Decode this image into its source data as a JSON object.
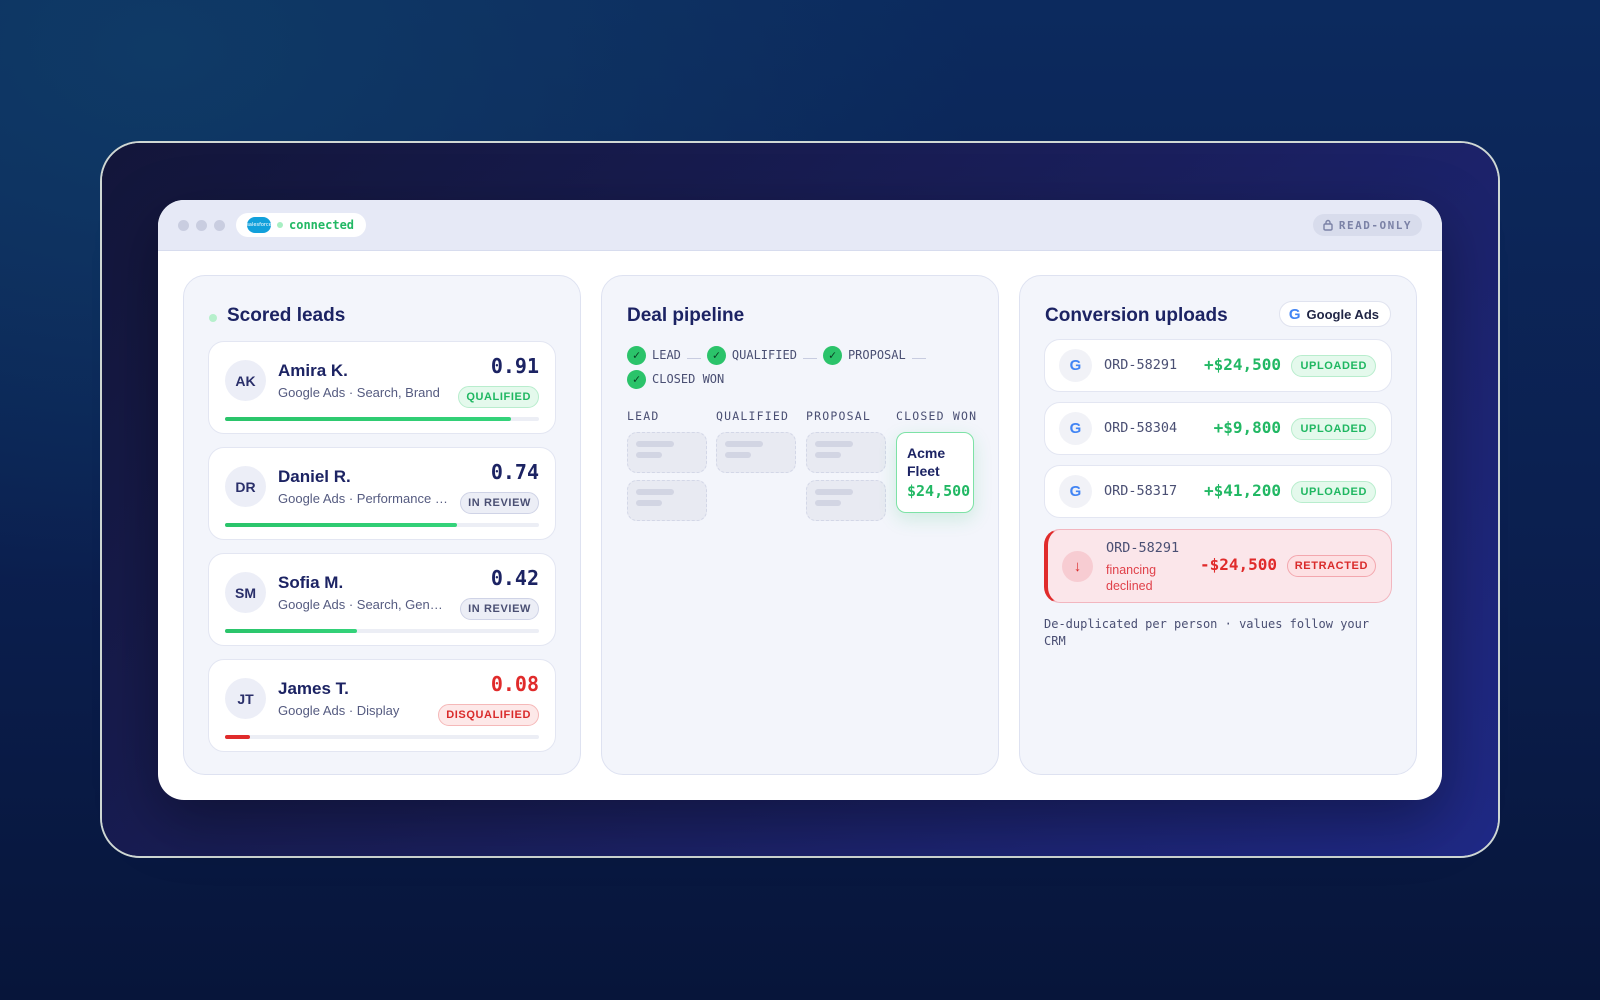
{
  "titlebar": {
    "connection_status": "connected",
    "salesforce_logo_text": "salesforce",
    "mode_label": "READ-ONLY"
  },
  "leads": {
    "title": "Scored leads",
    "items": [
      {
        "initials": "AK",
        "name": "Amira K.",
        "source": "Google Ads · Search, Brand",
        "score": "0.91",
        "status": "QUALIFIED",
        "score_fraction": 0.91
      },
      {
        "initials": "DR",
        "name": "Daniel R.",
        "source": "Google Ads · Performance Max",
        "score": "0.74",
        "status": "IN REVIEW",
        "score_fraction": 0.74
      },
      {
        "initials": "SM",
        "name": "Sofia M.",
        "source": "Google Ads · Search, Generic",
        "score": "0.42",
        "status": "IN REVIEW",
        "score_fraction": 0.42
      },
      {
        "initials": "JT",
        "name": "James T.",
        "source": "Google Ads · Display",
        "score": "0.08",
        "status": "DISQUALIFIED",
        "score_fraction": 0.08
      }
    ]
  },
  "pipeline": {
    "title": "Deal pipeline",
    "stages": [
      "LEAD",
      "QUALIFIED",
      "PROPOSAL",
      "CLOSED WON"
    ],
    "columns": [
      "LEAD",
      "QUALIFIED",
      "PROPOSAL",
      "CLOSED WON"
    ],
    "deal": {
      "name": "Acme Fleet",
      "value": "$24,500"
    }
  },
  "uploads": {
    "title": "Conversion uploads",
    "platform_label": "Google Ads",
    "rows": [
      {
        "order": "ORD-58291",
        "amount": "+$24,500",
        "status": "UPLOADED"
      },
      {
        "order": "ORD-58304",
        "amount": "+$9,800",
        "status": "UPLOADED"
      },
      {
        "order": "ORD-58317",
        "amount": "+$41,200",
        "status": "UPLOADED"
      }
    ],
    "retraction": {
      "order": "ORD-58291",
      "reason": "financing declined",
      "amount": "-$24,500",
      "status": "RETRACTED"
    },
    "footnote": "De-duplicated per person · values follow your CRM"
  },
  "colors": {
    "accent_green": "#2bc36a",
    "alert_red": "#e02b2b",
    "heading_navy": "#1c2363"
  }
}
